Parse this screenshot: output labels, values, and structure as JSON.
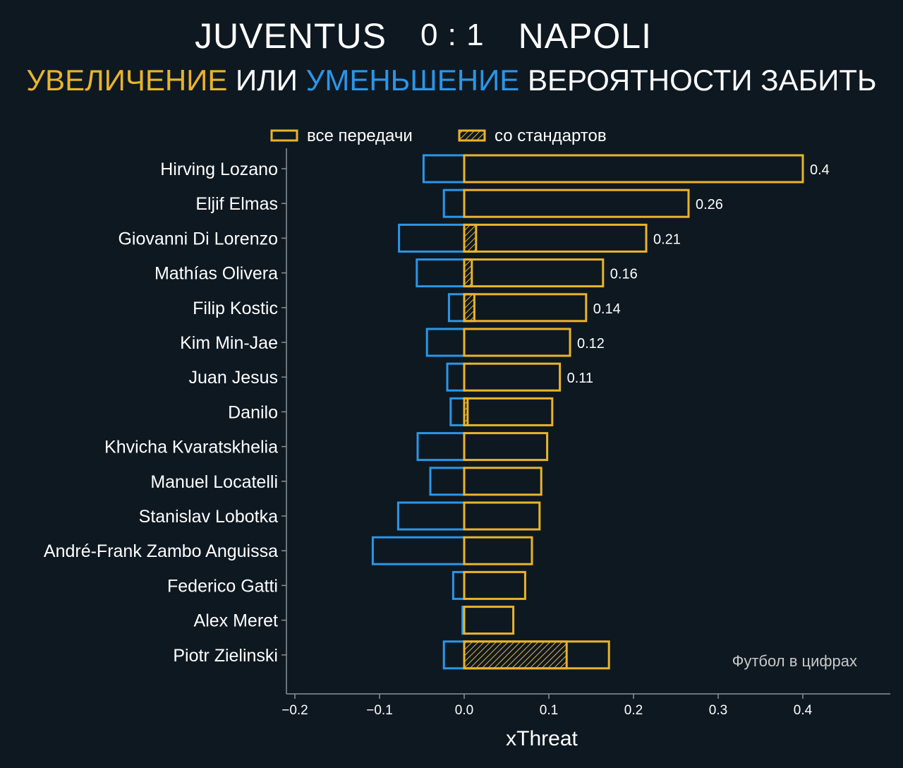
{
  "header": {
    "team_home": "JUVENTUS",
    "score": "0 : 1",
    "team_away": "NAPOLI",
    "subtitle_increase": "УВЕЛИЧЕНИЕ",
    "subtitle_or": " ИЛИ ",
    "subtitle_decrease": "УМЕНЬШЕНИЕ",
    "subtitle_rest": " ВЕРОЯТНОСТИ ЗАБИТЬ"
  },
  "colors": {
    "background": "#0e1821",
    "increase": "#e9b42b",
    "decrease": "#2a96e8",
    "axis": "#8a9299",
    "text": "#ffffff",
    "watermark": "#c8c8c8"
  },
  "watermark": "Футбол в цифрах",
  "chart_data": {
    "type": "bar",
    "orientation": "horizontal",
    "xlabel": "xThreat",
    "ylabel": "",
    "xlim": [
      -0.2,
      0.5
    ],
    "xticks": [
      -0.2,
      -0.1,
      0.0,
      0.1,
      0.2,
      0.3,
      0.4
    ],
    "xtick_labels": [
      "−0.2",
      "−0.1",
      "0.0",
      "0.1",
      "0.2",
      "0.3",
      "0.4"
    ],
    "grid": false,
    "legend": {
      "placement": "top",
      "entries": [
        {
          "label": "все передачи",
          "style": "outline"
        },
        {
          "label": "со стандартов",
          "style": "hatched"
        }
      ]
    },
    "categories": [
      "Hirving Lozano",
      "Eljif Elmas",
      "Giovanni Di Lorenzo",
      "Mathías Olivera",
      "Filip Kostic",
      "Kim Min-Jae",
      "Juan Jesus",
      "Danilo",
      "Khvicha Kvaratskhelia",
      "Manuel Locatelli",
      "Stanislav Lobotka",
      "André-Frank Zambo Anguissa",
      "Federico Gatti",
      "Alex Meret",
      "Piotr Zielinski"
    ],
    "series": [
      {
        "name": "все передачи",
        "values": [
          0.4,
          0.265,
          0.215,
          0.164,
          0.144,
          0.125,
          0.113,
          0.104,
          0.098,
          0.091,
          0.089,
          0.08,
          0.072,
          0.058,
          0.171
        ]
      },
      {
        "name": "со стандартов",
        "values": [
          0,
          0,
          0.014,
          0.009,
          0.012,
          0,
          0,
          0.004,
          0,
          0,
          0,
          0,
          0,
          0,
          0.121
        ]
      },
      {
        "name": "decrease",
        "values": [
          -0.048,
          -0.024,
          -0.077,
          -0.056,
          -0.018,
          -0.044,
          -0.02,
          -0.016,
          -0.055,
          -0.04,
          -0.078,
          -0.108,
          -0.013,
          -0.002,
          -0.024
        ]
      }
    ],
    "value_labels": [
      "0.4",
      "0.26",
      "0.21",
      "0.16",
      "0.14",
      "0.12",
      "0.11",
      "",
      "",
      "",
      "",
      "",
      "",
      "",
      ""
    ]
  }
}
